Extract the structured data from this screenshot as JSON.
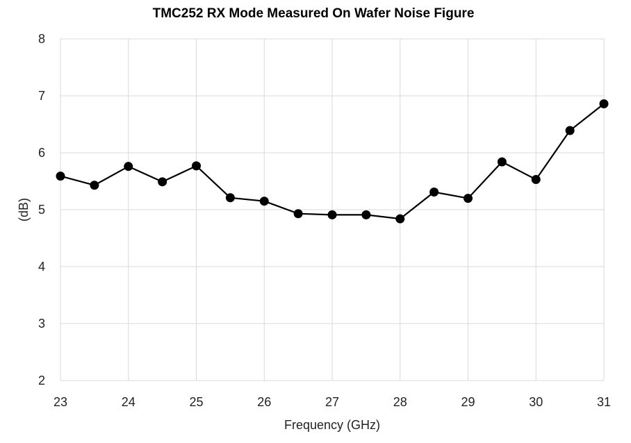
{
  "chart_data": {
    "type": "line",
    "title": "TMC252 RX Mode Measured On Wafer Noise Figure",
    "xlabel": "Frequency (GHz)",
    "ylabel": "(dB)",
    "xlim": [
      23,
      31
    ],
    "ylim": [
      2,
      8
    ],
    "xticks": [
      23,
      24,
      25,
      26,
      27,
      28,
      29,
      30,
      31
    ],
    "yticks": [
      2,
      3,
      4,
      5,
      6,
      7,
      8
    ],
    "grid": true,
    "legend": "none",
    "series": [
      {
        "color": "#000000",
        "marker": "circle",
        "x": [
          23,
          23.5,
          24,
          24.5,
          25,
          25.5,
          26,
          26.5,
          27,
          27.5,
          28,
          28.5,
          29,
          29.5,
          30,
          30.5,
          31
        ],
        "y": [
          5.59,
          5.43,
          5.76,
          5.49,
          5.77,
          5.21,
          5.15,
          4.93,
          4.91,
          4.91,
          4.84,
          5.31,
          5.2,
          5.84,
          5.53,
          6.39,
          6.86
        ]
      }
    ]
  }
}
